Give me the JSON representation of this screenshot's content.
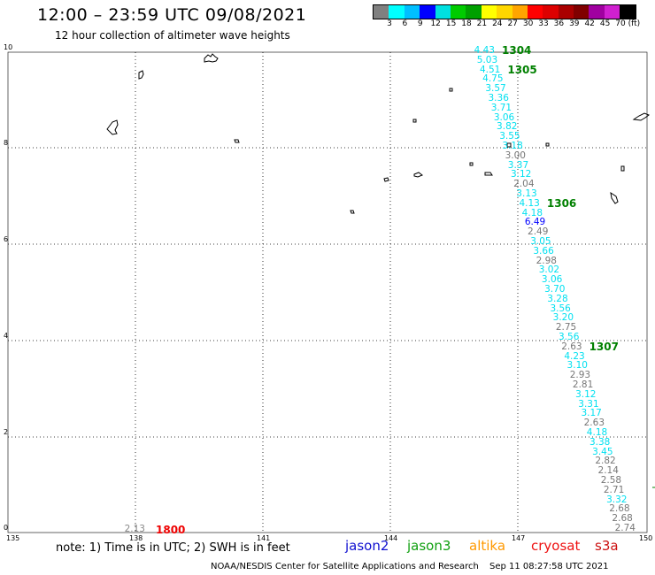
{
  "header": {
    "title": "12:00 – 23:59 UTC 09/08/2021",
    "subtitle": "12 hour collection of altimeter wave heights"
  },
  "color_scale": {
    "colors": [
      "#808080",
      "#00ffff",
      "#00bfff",
      "#0000ff",
      "#00e0e0",
      "#00cc00",
      "#00a000",
      "#ffff00",
      "#ffd700",
      "#ffa500",
      "#ff0000",
      "#dd0000",
      "#aa0000",
      "#800000",
      "#a000a0",
      "#d020d0",
      "#000000"
    ],
    "labels": [
      "3",
      "6",
      "9",
      "12",
      "15",
      "18",
      "21",
      "24",
      "27",
      "30",
      "33",
      "36",
      "39",
      "42",
      "45",
      "70",
      "(ft)"
    ]
  },
  "axes": {
    "x_ticks": [
      "135",
      "138",
      "141",
      "144",
      "147",
      "150"
    ],
    "y_ticks": [
      "0",
      "2",
      "4",
      "6",
      "8",
      "10"
    ]
  },
  "track": {
    "readings": [
      {
        "v": "4.43",
        "c": "cyan"
      },
      {
        "v": "5.03",
        "c": "cyan"
      },
      {
        "v": "4.51",
        "c": "cyan"
      },
      {
        "v": "4.75",
        "c": "cyan"
      },
      {
        "v": "3.57",
        "c": "cyan"
      },
      {
        "v": "3.36",
        "c": "cyan"
      },
      {
        "v": "3.71",
        "c": "cyan"
      },
      {
        "v": "3.06",
        "c": "cyan"
      },
      {
        "v": "3.82",
        "c": "cyan"
      },
      {
        "v": "3.55",
        "c": "cyan"
      },
      {
        "v": "3.18",
        "c": "cyan"
      },
      {
        "v": "3.00",
        "c": "gray"
      },
      {
        "v": "3.37",
        "c": "cyan"
      },
      {
        "v": "3.12",
        "c": "cyan"
      },
      {
        "v": "2.04",
        "c": "gray"
      },
      {
        "v": "3.13",
        "c": "cyan"
      },
      {
        "v": "4.13",
        "c": "cyan"
      },
      {
        "v": "4.18",
        "c": "cyan"
      },
      {
        "v": "6.49",
        "c": "blue"
      },
      {
        "v": "2.49",
        "c": "gray"
      },
      {
        "v": "3.05",
        "c": "cyan"
      },
      {
        "v": "3.66",
        "c": "cyan"
      },
      {
        "v": "2.98",
        "c": "gray"
      },
      {
        "v": "3.02",
        "c": "cyan"
      },
      {
        "v": "3.06",
        "c": "cyan"
      },
      {
        "v": "3.70",
        "c": "cyan"
      },
      {
        "v": "3.28",
        "c": "cyan"
      },
      {
        "v": "3.56",
        "c": "cyan"
      },
      {
        "v": "3.20",
        "c": "cyan"
      },
      {
        "v": "2.75",
        "c": "gray"
      },
      {
        "v": "3.56",
        "c": "cyan"
      },
      {
        "v": "2.63",
        "c": "gray"
      },
      {
        "v": "4.23",
        "c": "cyan"
      },
      {
        "v": "3.10",
        "c": "cyan"
      },
      {
        "v": "2.93",
        "c": "gray"
      },
      {
        "v": "2.81",
        "c": "gray"
      },
      {
        "v": "3.12",
        "c": "cyan"
      },
      {
        "v": "3.31",
        "c": "cyan"
      },
      {
        "v": "3.17",
        "c": "cyan"
      },
      {
        "v": "2.63",
        "c": "gray"
      },
      {
        "v": "4.18",
        "c": "cyan"
      },
      {
        "v": "3.38",
        "c": "cyan"
      },
      {
        "v": "3.45",
        "c": "cyan"
      },
      {
        "v": "2.82",
        "c": "gray"
      },
      {
        "v": "2.14",
        "c": "gray"
      },
      {
        "v": "2.58",
        "c": "gray"
      },
      {
        "v": "2.71",
        "c": "gray"
      },
      {
        "v": "3.32",
        "c": "cyan"
      },
      {
        "v": "2.68",
        "c": "gray"
      },
      {
        "v": "2.68",
        "c": "gray"
      },
      {
        "v": "2.74",
        "c": "gray"
      }
    ],
    "time_labels": [
      {
        "t": "1304",
        "idx": 0
      },
      {
        "t": "1305",
        "idx": 2
      },
      {
        "t": "1306",
        "idx": 16
      },
      {
        "t": "1307",
        "idx": 31
      }
    ]
  },
  "bottom_reading": {
    "v": "2.13",
    "time": "1800"
  },
  "footer": {
    "note": "note:  1) Time is in UTC; 2) SWH is in feet",
    "satellites": [
      {
        "name": "jason2",
        "color": "#1010d0"
      },
      {
        "name": "jason3",
        "color": "#10a010"
      },
      {
        "name": "altika",
        "color": "#ff9900"
      },
      {
        "name": "cryosat",
        "color": "#ee1111"
      },
      {
        "name": "s3a",
        "color": "#cc1111"
      }
    ],
    "credit": "NOAA/NESDIS Center for Satellite Applications and Research",
    "generated": "Sep 11 08:27:58 UTC 2021"
  }
}
